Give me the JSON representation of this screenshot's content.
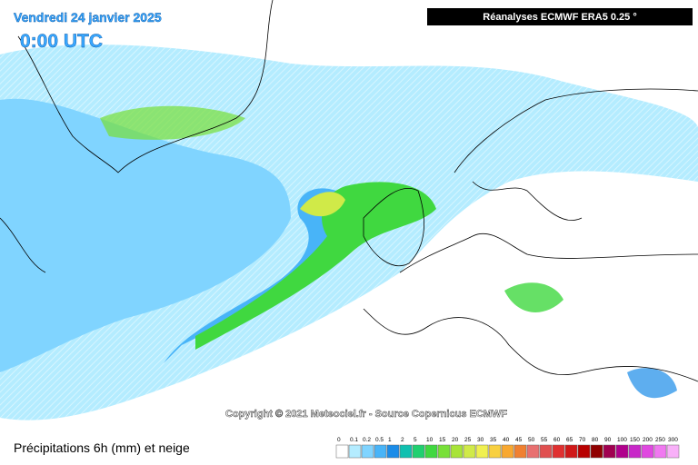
{
  "header": {
    "date": "Vendredi 24 janvier 2025",
    "time": "0:00 UTC",
    "source": "Réanalyses ECMWF ERA5 0.25 °"
  },
  "copyright": "Copyright © 2021 Meteociel.fr - Source Copernicus ECMWF",
  "legend": {
    "title": "Précipitations 6h (mm) et neige",
    "steps": [
      {
        "label": "0",
        "color": "#ffffff"
      },
      {
        "label": "0.1",
        "color": "#b4ecff"
      },
      {
        "label": "0.2",
        "color": "#80d4ff"
      },
      {
        "label": "0.5",
        "color": "#48b4f8"
      },
      {
        "label": "1",
        "color": "#1a8ce8"
      },
      {
        "label": "2",
        "color": "#10c0b0"
      },
      {
        "label": "5",
        "color": "#20d070"
      },
      {
        "label": "10",
        "color": "#40d840"
      },
      {
        "label": "15",
        "color": "#78e038"
      },
      {
        "label": "20",
        "color": "#a8e438"
      },
      {
        "label": "25",
        "color": "#d0ea48"
      },
      {
        "label": "30",
        "color": "#f0f050"
      },
      {
        "label": "35",
        "color": "#f8d040"
      },
      {
        "label": "40",
        "color": "#f8a830"
      },
      {
        "label": "45",
        "color": "#f08030"
      },
      {
        "label": "50",
        "color": "#e87070"
      },
      {
        "label": "55",
        "color": "#e05050"
      },
      {
        "label": "60",
        "color": "#e03030"
      },
      {
        "label": "65",
        "color": "#d01818"
      },
      {
        "label": "70",
        "color": "#b80000"
      },
      {
        "label": "80",
        "color": "#900000"
      },
      {
        "label": "90",
        "color": "#a00050"
      },
      {
        "label": "100",
        "color": "#b0008c"
      },
      {
        "label": "150",
        "color": "#c828c8"
      },
      {
        "label": "200",
        "color": "#e048e0"
      },
      {
        "label": "250",
        "color": "#f078f0"
      },
      {
        "label": "300",
        "color": "#f8b0f8"
      }
    ]
  }
}
